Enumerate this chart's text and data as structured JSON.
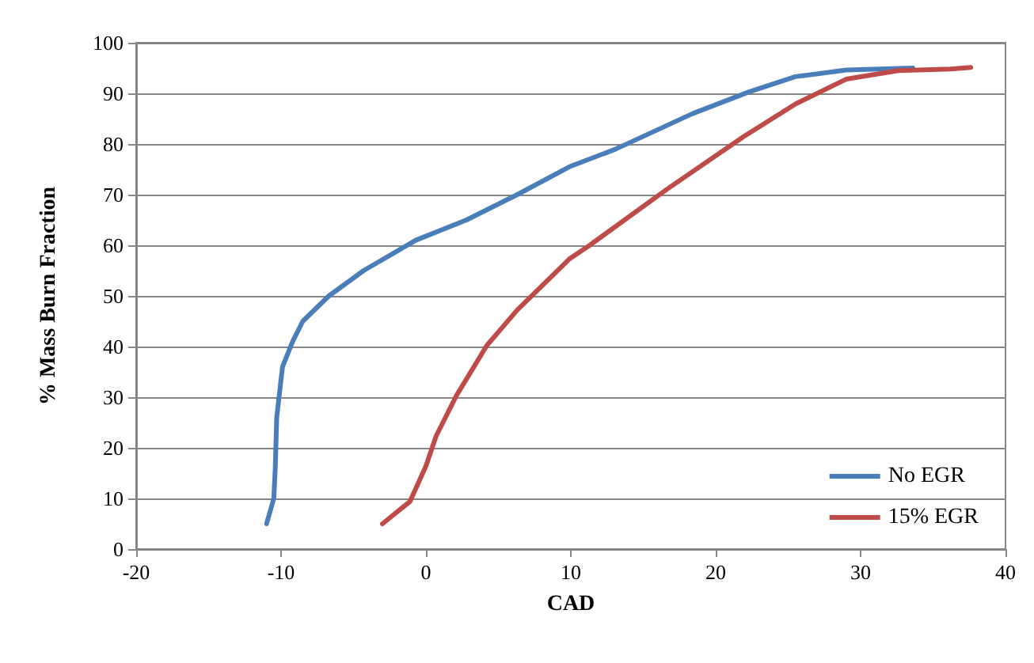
{
  "chart_data": {
    "type": "line",
    "xlabel": "CAD",
    "ylabel": "% Mass Burn Fraction",
    "xlim": [
      -20,
      40
    ],
    "xticks": [
      -20,
      -10,
      0,
      10,
      20,
      30,
      40
    ],
    "ylim": [
      0,
      100
    ],
    "yticks": [
      0,
      10,
      20,
      30,
      40,
      50,
      60,
      70,
      80,
      90,
      100
    ],
    "grid": "y",
    "legend": "bottom right",
    "marker": "none",
    "line_style": "solid",
    "series": [
      {
        "name": "No EGR",
        "color": "#4a7ebb",
        "x": [
          -11,
          -10.5,
          -10.4,
          -10.3,
          -9.9,
          -9.2,
          -8.5,
          -6.7,
          -4.3,
          -0.7,
          2.8,
          6.3,
          9.9,
          13.1,
          18.4,
          22.3,
          25.5,
          29,
          33.6
        ],
        "values": [
          5,
          10,
          16,
          26,
          36,
          41,
          45,
          50,
          55,
          61,
          65,
          70,
          75.5,
          79,
          86,
          90.3,
          93.3,
          94.6,
          95
        ]
      },
      {
        "name": "15% EGR",
        "color": "#be4b48",
        "x": [
          -3,
          -1.1,
          0,
          0.7,
          2.1,
          4.2,
          6.3,
          9.9,
          11.3,
          16.6,
          21.9,
          25.5,
          29,
          32.6,
          36.2,
          37.6
        ],
        "values": [
          5,
          9.4,
          16.4,
          22.3,
          30.3,
          40.2,
          47.2,
          57.3,
          60,
          71,
          81.4,
          87.9,
          92.8,
          94.5,
          94.8,
          95.1
        ]
      }
    ]
  }
}
